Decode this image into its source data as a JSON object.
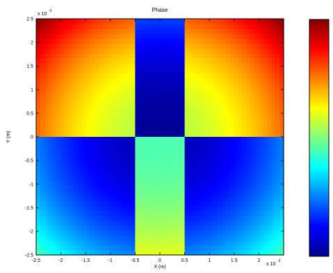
{
  "chart_data": {
    "type": "heatmap",
    "title": "Phase",
    "xlabel": "X (m)",
    "ylabel": "Y (m)",
    "x_exponent_label": "x 10",
    "x_exponent_power": "-3",
    "y_exponent_label": "x 10",
    "y_exponent_power": "-3",
    "xlim": [
      -2.5,
      2.5
    ],
    "ylim": [
      -2.5,
      2.5
    ],
    "x_ticks": [
      -2.5,
      -2,
      -1.5,
      -1,
      -0.5,
      0,
      0.5,
      1,
      1.5,
      2
    ],
    "x_tick_labels": [
      "-2.5",
      "-2",
      "-1.5",
      "-1",
      "-0.5",
      "0",
      "0.5",
      "1",
      "1.5",
      "2"
    ],
    "y_ticks": [
      2.5,
      2,
      1.5,
      1,
      0.5,
      0,
      -0.5,
      -1,
      -1.5,
      -2,
      -2.5
    ],
    "y_tick_labels": [
      "2.5",
      "2",
      "1.5",
      "1",
      "0.5",
      "0",
      "-0.5",
      "-1",
      "-1.5",
      "-2",
      "-2.5"
    ],
    "colormap": "jet",
    "grid": false,
    "colorbar": true,
    "regions": [
      {
        "x": [
          -2.5,
          -0.5
        ],
        "y": [
          0,
          2.5
        ],
        "value_at_center": 0.55,
        "value_at_corner": 1.0
      },
      {
        "x": [
          -0.5,
          0.5
        ],
        "y": [
          0,
          2.5
        ],
        "value_at_center": 0.02,
        "value_at_corner": 0.35
      },
      {
        "x": [
          0.5,
          2.5
        ],
        "y": [
          0,
          2.5
        ],
        "value_at_center": 0.55,
        "value_at_corner": 1.0
      },
      {
        "x": [
          -2.5,
          -0.5
        ],
        "y": [
          -2.5,
          0
        ],
        "value_at_center": 0.05,
        "value_at_corner": 0.45
      },
      {
        "x": [
          -0.5,
          0.5
        ],
        "y": [
          -2.5,
          0
        ],
        "value_at_center": 0.45,
        "value_at_corner": 0.75
      },
      {
        "x": [
          0.5,
          2.5
        ],
        "y": [
          -2.5,
          0
        ],
        "value_at_center": 0.05,
        "value_at_corner": 0.45
      }
    ]
  }
}
